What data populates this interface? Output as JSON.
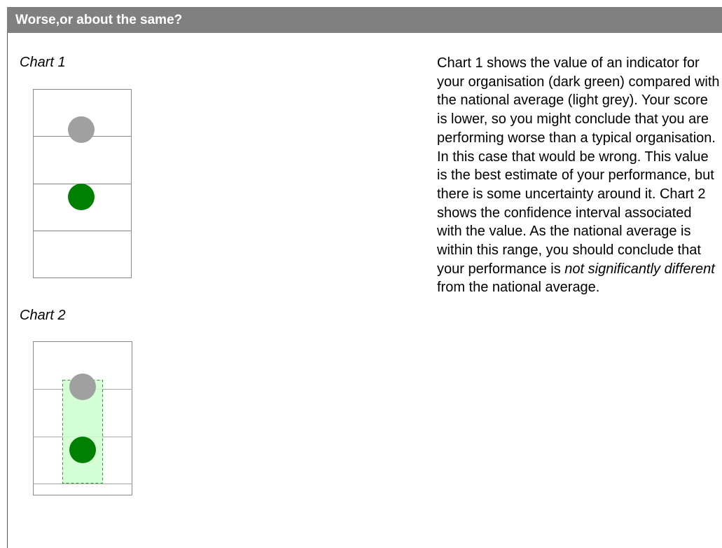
{
  "header": {
    "title": "Worse,or about the same?"
  },
  "charts": [
    {
      "label": "Chart 1"
    },
    {
      "label": "Chart 2"
    }
  ],
  "description": {
    "text_before": "Chart 1 shows the value of an indicator for your organisation (dark green) compared with the national average (light grey). Your score is lower, so you might conclude that you are performing worse than a typical organisation. In this case that would be wrong. This value is the best estimate of your performance, but there is some uncertainty around it. Chart 2 shows the confidence interval associated with the value. As the national average is within this range, you should conclude that your performance is ",
    "emphasis": "not significantly different",
    "text_after": " from the national average."
  }
}
